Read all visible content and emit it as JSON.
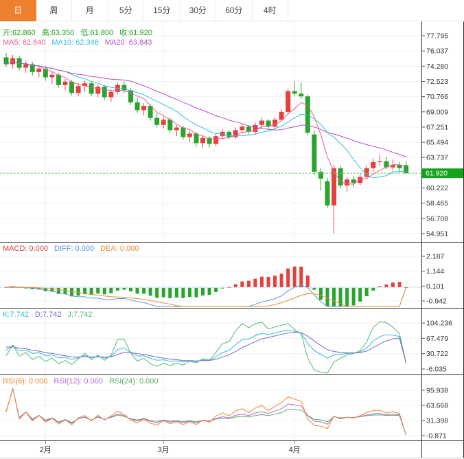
{
  "toolbar": {
    "tabs": [
      {
        "label": "日",
        "active": true
      },
      {
        "label": "周",
        "active": false
      },
      {
        "label": "月",
        "active": false
      },
      {
        "label": "5分",
        "active": false
      },
      {
        "label": "15分",
        "active": false
      },
      {
        "label": "30分",
        "active": false
      },
      {
        "label": "60分",
        "active": false
      },
      {
        "label": "4时",
        "active": false
      }
    ]
  },
  "colors": {
    "up": "#e5403d",
    "down": "#27a52c",
    "tab_active_bg": "#ee7f2f",
    "price_badge": "#13a31a",
    "price_dash_line": "#6ec86e",
    "ma5": "#ef5a8f",
    "ma10": "#36bedd",
    "ma20": "#b052c5",
    "diff": "#5b9bd5",
    "dea": "#ed8b33",
    "k": "#2fb9d8",
    "d": "#7a66c5",
    "j": "#56b96a",
    "rsi6": "#ef8531",
    "rsi12": "#b269d6",
    "rsi24": "#55ad60",
    "grid": "#edf1f8",
    "axis_text": "#333333",
    "separator": "#2b2b2b"
  },
  "price_header": {
    "ohlc": [
      {
        "text": "开:62.860",
        "color": "#21a21f"
      },
      {
        "text": "高:63.350",
        "color": "#21a21f"
      },
      {
        "text": "低:61.800",
        "color": "#21a21f"
      },
      {
        "text": "收:61.920",
        "color": "#21a21f"
      }
    ],
    "ma": [
      {
        "text": "MA5: 62.640",
        "color": "#ef5a8f"
      },
      {
        "text": "MA10: 62.346",
        "color": "#36bedd"
      },
      {
        "text": "MA20: 63.843",
        "color": "#b052c5"
      }
    ]
  },
  "macd_header": [
    {
      "text": "MACD: 0.000",
      "color": "#e23b3b"
    },
    {
      "text": "DIFF: 0.000",
      "color": "#4f94e8"
    },
    {
      "text": "DEA: 0.000",
      "color": "#ed8b33"
    }
  ],
  "kdj_header": [
    {
      "text": "K:7.742",
      "color": "#2fb9d8"
    },
    {
      "text": "D:7.742",
      "color": "#7a66c5"
    },
    {
      "text": "J:7.742",
      "color": "#56b96a"
    }
  ],
  "rsi_header": [
    {
      "text": "RSI(6): 0.000",
      "color": "#ef8531"
    },
    {
      "text": "RSI(12): 0.000",
      "color": "#b269d6"
    },
    {
      "text": "RSI(24): 0.000",
      "color": "#55ad60"
    }
  ],
  "chart_data": {
    "type": "candlestick",
    "x_axis": {
      "labels": [
        "2月",
        "3月",
        "4月"
      ],
      "tick_candle_indices": [
        6,
        24,
        44
      ]
    },
    "price_panel": {
      "y_ticks": [
        77.795,
        76.037,
        74.28,
        72.523,
        70.766,
        69.009,
        67.251,
        65.494,
        63.737,
        60.222,
        58.465,
        56.708,
        54.951
      ],
      "current_price": "61.920",
      "current_price_value": 61.92,
      "ohlc": {
        "open": 62.86,
        "high": 63.35,
        "low": 61.8,
        "close": 61.92
      },
      "ma": {
        "ma5": 62.64,
        "ma10": 62.346,
        "ma20": 63.843
      }
    },
    "macd_panel": {
      "y_ticks": [
        2.187,
        1.144,
        0.101,
        -0.942
      ],
      "last": {
        "macd": 0.0,
        "diff": 0.0,
        "dea": 0.0
      }
    },
    "kdj_panel": {
      "y_ticks": [
        104.236,
        67.479,
        30.722,
        -6.035
      ],
      "last": {
        "k": 7.742,
        "d": 7.742,
        "j": 7.742
      }
    },
    "rsi_panel": {
      "y_ticks": [
        95.938,
        63.668,
        31.398,
        -0.871
      ],
      "last": {
        "rsi6": 0.0,
        "rsi12": 0.0,
        "rsi24": 0.0
      }
    },
    "candles": [
      [
        75.3,
        75.8,
        74.2,
        74.5
      ],
      [
        74.5,
        75.6,
        74.0,
        75.2
      ],
      [
        75.2,
        75.5,
        73.8,
        74.1
      ],
      [
        74.1,
        74.9,
        73.5,
        74.5
      ],
      [
        74.5,
        74.8,
        73.2,
        73.6
      ],
      [
        73.6,
        74.4,
        73.0,
        74.0
      ],
      [
        74.0,
        74.3,
        72.6,
        73.0
      ],
      [
        73.0,
        73.6,
        72.2,
        73.3
      ],
      [
        73.3,
        73.5,
        71.8,
        72.1
      ],
      [
        72.1,
        72.8,
        71.5,
        72.5
      ],
      [
        72.5,
        72.7,
        70.9,
        71.2
      ],
      [
        71.2,
        72.3,
        70.8,
        72.0
      ],
      [
        72.0,
        72.6,
        71.3,
        72.3
      ],
      [
        72.3,
        72.5,
        70.8,
        71.1
      ],
      [
        71.1,
        72.2,
        70.7,
        71.9
      ],
      [
        71.9,
        72.1,
        70.4,
        70.7
      ],
      [
        70.7,
        71.6,
        70.2,
        71.3
      ],
      [
        71.3,
        72.4,
        71.0,
        72.1
      ],
      [
        72.1,
        72.5,
        71.2,
        71.5
      ],
      [
        71.5,
        71.8,
        69.8,
        70.1
      ],
      [
        70.1,
        70.6,
        68.9,
        69.2
      ],
      [
        69.2,
        70.0,
        68.6,
        69.7
      ],
      [
        69.7,
        69.9,
        68.0,
        68.3
      ],
      [
        68.3,
        68.8,
        67.2,
        67.5
      ],
      [
        67.5,
        68.4,
        67.1,
        68.1
      ],
      [
        68.1,
        68.3,
        66.6,
        66.9
      ],
      [
        66.9,
        67.5,
        66.2,
        67.2
      ],
      [
        67.2,
        67.4,
        65.8,
        66.1
      ],
      [
        66.1,
        66.8,
        65.5,
        66.5
      ],
      [
        66.5,
        66.7,
        65.0,
        65.4
      ],
      [
        65.4,
        66.3,
        64.8,
        66.0
      ],
      [
        66.0,
        66.2,
        64.9,
        65.3
      ],
      [
        65.3,
        66.5,
        65.0,
        66.2
      ],
      [
        66.2,
        67.0,
        65.9,
        66.7
      ],
      [
        66.7,
        66.9,
        65.8,
        66.1
      ],
      [
        66.1,
        67.2,
        65.9,
        66.9
      ],
      [
        66.9,
        67.6,
        66.5,
        67.3
      ],
      [
        67.3,
        67.5,
        66.4,
        66.7
      ],
      [
        66.7,
        67.8,
        66.4,
        67.5
      ],
      [
        67.5,
        68.3,
        67.1,
        68.0
      ],
      [
        68.0,
        68.2,
        67.0,
        67.3
      ],
      [
        67.3,
        68.4,
        67.0,
        68.1
      ],
      [
        68.1,
        69.3,
        67.9,
        69.0
      ],
      [
        69.0,
        71.7,
        68.8,
        71.4
      ],
      [
        71.4,
        72.5,
        70.8,
        71.1
      ],
      [
        71.1,
        72.4,
        70.5,
        70.8
      ],
      [
        70.8,
        71.0,
        66.3,
        66.6
      ],
      [
        66.4,
        66.9,
        61.7,
        62.1
      ],
      [
        62.1,
        62.5,
        59.9,
        61.3
      ],
      [
        61.0,
        61.4,
        57.9,
        58.2
      ],
      [
        58.2,
        62.9,
        54.96,
        62.5
      ],
      [
        62.5,
        62.8,
        60.2,
        60.5
      ],
      [
        60.5,
        61.5,
        59.8,
        61.2
      ],
      [
        61.2,
        61.6,
        60.3,
        60.8
      ],
      [
        60.8,
        61.9,
        60.5,
        61.5
      ],
      [
        61.5,
        62.8,
        61.2,
        62.5
      ],
      [
        62.5,
        63.6,
        62.1,
        63.2
      ],
      [
        63.2,
        64.0,
        62.8,
        63.3
      ],
      [
        63.3,
        63.8,
        62.3,
        62.6
      ],
      [
        62.6,
        63.5,
        62.2,
        62.9
      ],
      [
        62.9,
        63.2,
        62.1,
        62.5
      ],
      [
        62.86,
        63.35,
        61.8,
        61.92
      ]
    ]
  }
}
